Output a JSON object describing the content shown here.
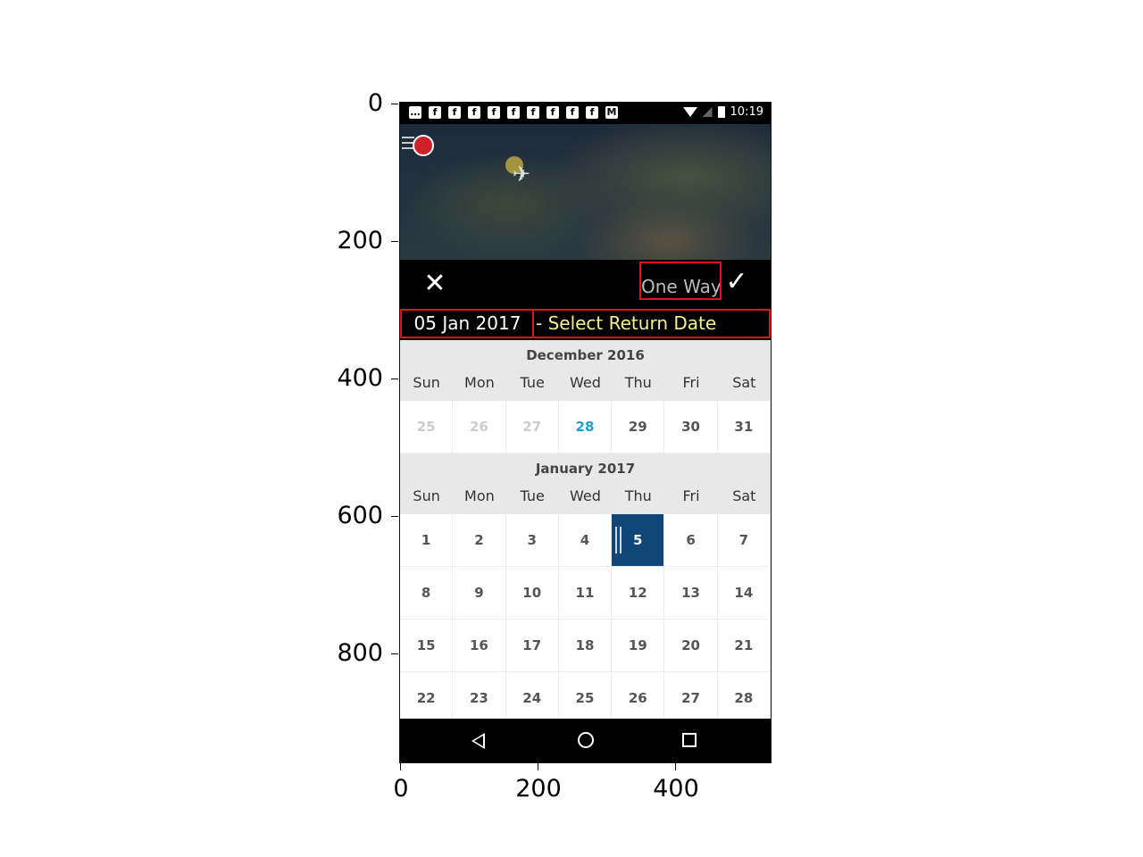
{
  "figure": {
    "y_ticks": [
      "0",
      "200",
      "400",
      "600",
      "800"
    ],
    "x_ticks": [
      "0",
      "200",
      "400"
    ]
  },
  "status_bar": {
    "time": "10:19",
    "notification_icons": [
      "message-icon",
      "facebook-icon",
      "facebook-icon",
      "facebook-icon",
      "facebook-icon",
      "facebook-icon",
      "facebook-icon",
      "facebook-icon",
      "facebook-icon",
      "facebook-icon",
      "mail-icon"
    ]
  },
  "header": {
    "close_symbol": "✕",
    "one_way_label": "One Way",
    "check_symbol": "✓"
  },
  "date_bar": {
    "departure_date": "05 Jan 2017",
    "return_prompt": "- Select Return Date"
  },
  "calendar": {
    "weekday_labels": [
      "Sun",
      "Mon",
      "Tue",
      "Wed",
      "Thu",
      "Fri",
      "Sat"
    ],
    "months": [
      {
        "title": "December 2016",
        "weeks": [
          [
            {
              "day": "25",
              "state": "dim"
            },
            {
              "day": "26",
              "state": "dim"
            },
            {
              "day": "27",
              "state": "dim"
            },
            {
              "day": "28",
              "state": "today"
            },
            {
              "day": "29",
              "state": "normal"
            },
            {
              "day": "30",
              "state": "normal"
            },
            {
              "day": "31",
              "state": "normal"
            }
          ]
        ]
      },
      {
        "title": "January 2017",
        "weeks": [
          [
            {
              "day": "1",
              "state": "normal"
            },
            {
              "day": "2",
              "state": "normal"
            },
            {
              "day": "3",
              "state": "normal"
            },
            {
              "day": "4",
              "state": "normal"
            },
            {
              "day": "5",
              "state": "selected"
            },
            {
              "day": "6",
              "state": "normal"
            },
            {
              "day": "7",
              "state": "normal"
            }
          ],
          [
            {
              "day": "8",
              "state": "normal"
            },
            {
              "day": "9",
              "state": "normal"
            },
            {
              "day": "10",
              "state": "normal"
            },
            {
              "day": "11",
              "state": "normal"
            },
            {
              "day": "12",
              "state": "normal"
            },
            {
              "day": "13",
              "state": "normal"
            },
            {
              "day": "14",
              "state": "normal"
            }
          ],
          [
            {
              "day": "15",
              "state": "normal"
            },
            {
              "day": "16",
              "state": "normal"
            },
            {
              "day": "17",
              "state": "normal"
            },
            {
              "day": "18",
              "state": "normal"
            },
            {
              "day": "19",
              "state": "normal"
            },
            {
              "day": "20",
              "state": "normal"
            },
            {
              "day": "21",
              "state": "normal"
            }
          ],
          [
            {
              "day": "22",
              "state": "normal"
            },
            {
              "day": "23",
              "state": "normal"
            },
            {
              "day": "24",
              "state": "normal"
            },
            {
              "day": "25",
              "state": "normal"
            },
            {
              "day": "26",
              "state": "normal"
            },
            {
              "day": "27",
              "state": "normal"
            },
            {
              "day": "28",
              "state": "normal"
            }
          ]
        ]
      }
    ]
  },
  "colors": {
    "highlight_box": "#e0131a",
    "selected_day": "#0f4577",
    "today_day": "#1aa0c9",
    "return_prompt_text": "#f6f08a"
  }
}
